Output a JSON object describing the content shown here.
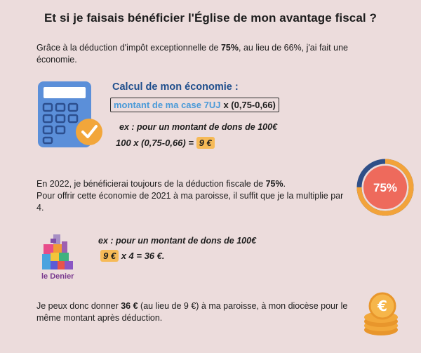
{
  "title": "Et si je faisais bénéficier l'Église de mon avantage fiscal ?",
  "intro": {
    "before": "Grâce à la déduction d'impôt exceptionnelle de ",
    "bold": "75%",
    "after": ", au lieu de 66%, j'ai fait une économie."
  },
  "calc": {
    "heading": "Calcul de mon économie :",
    "formula_blue": "montant  de ma case 7UJ",
    "formula_rest": "x (0,75-0,66)",
    "example": "ex : pour un montant de dons de 100€",
    "computation": "100 x (0,75-0,66) = ",
    "result": "9 €"
  },
  "year2022": {
    "line1_before": "En 2022, je bénéficierai toujours de la déduction fiscale de ",
    "line1_bold": "75%",
    "line1_after": ".",
    "line2": "Pour offrir cette économie de 2021 à ma paroisse, il suffit que je la multiplie par 4."
  },
  "gauge": {
    "label": "75%",
    "value_percent": 75,
    "fill_color": "#f2a33a",
    "track_color": "#2f4f88",
    "inner_color": "#ee6a5c"
  },
  "example2": {
    "line": "ex : pour un montant de dons de 100€",
    "result_highlight": "9 €",
    "result_rest": " x 4 = 36 €."
  },
  "denier": {
    "label": "le Denier"
  },
  "conclusion": {
    "before": "Je peux donc donner ",
    "bold": "36 €",
    "after": " (au lieu de 9 €) à ma paroisse, à mon diocèse pour le même montant après déduction."
  },
  "coins_icon": "euro-coins-icon",
  "calculator_icon": "calculator-check-icon"
}
